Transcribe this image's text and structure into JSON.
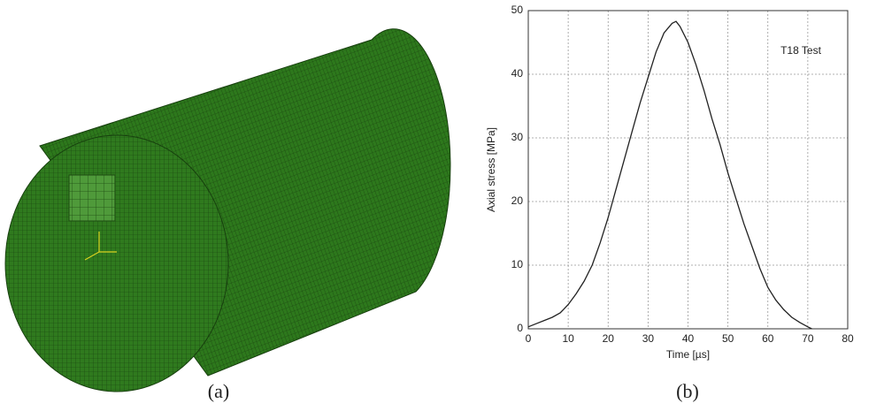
{
  "chart_data": {
    "type": "line",
    "x_label": "Time [µs]",
    "y_label": "Axial stress [MPa]",
    "annotation": "T18 Test",
    "x": [
      0,
      2,
      4,
      6,
      8,
      10,
      12,
      14,
      16,
      18,
      20,
      22,
      24,
      26,
      28,
      30,
      32,
      34,
      36,
      37,
      38,
      40,
      42,
      44,
      46,
      48,
      50,
      52,
      54,
      56,
      58,
      60,
      62,
      64,
      66,
      68,
      70,
      71
    ],
    "y": [
      0.3,
      0.8,
      1.3,
      1.8,
      2.5,
      3.8,
      5.5,
      7.5,
      10,
      13.5,
      17.5,
      22,
      26.5,
      31,
      35.5,
      39.5,
      43.5,
      46.5,
      48,
      48.3,
      47.5,
      45,
      41.5,
      37.5,
      33,
      29,
      24.5,
      20.5,
      16.5,
      13,
      9.5,
      6.5,
      4.5,
      3,
      1.8,
      1,
      0.3,
      0
    ],
    "color": "#222222",
    "xlim": [
      0,
      80
    ],
    "xticks": [
      0,
      10,
      20,
      30,
      40,
      50,
      60,
      70,
      80
    ],
    "ylim": [
      0,
      50
    ],
    "yticks": [
      0,
      10,
      20,
      30,
      40,
      50
    ],
    "grid": true
  },
  "captions": [
    "(a)",
    "(b)"
  ]
}
